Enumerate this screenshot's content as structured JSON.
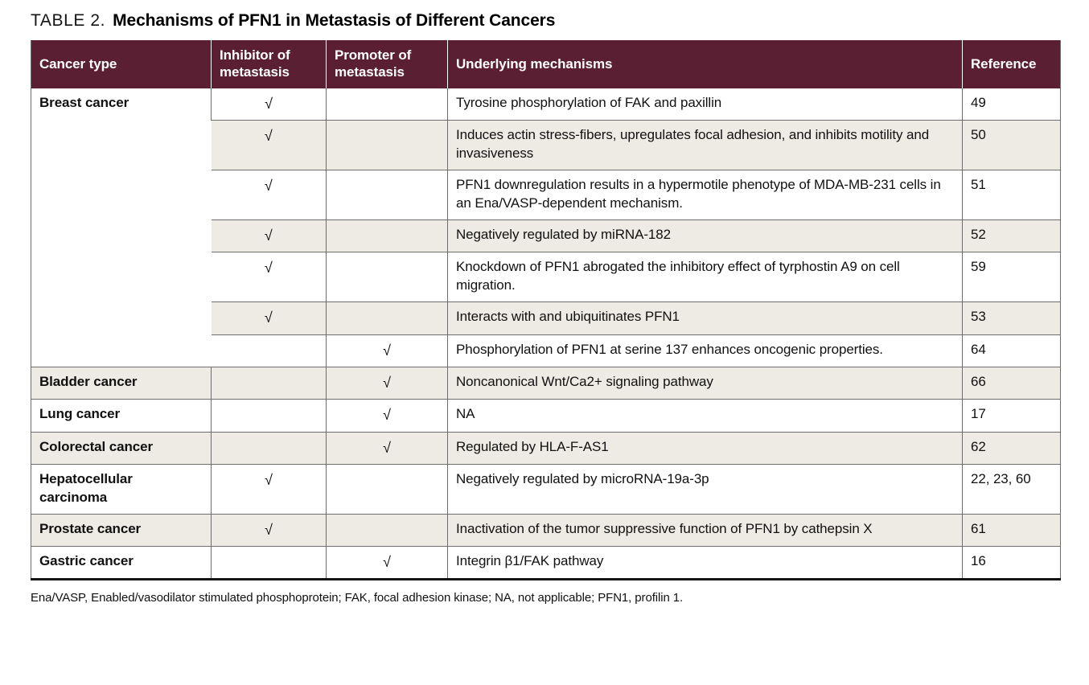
{
  "page": {
    "title_label": "TABLE 2.",
    "title_text": "Mechanisms of PFN1 in Metastasis of Different Cancers",
    "footnote": "Ena/VASP, Enabled/vasodilator stimulated phosphoprotein; FAK, focal adhesion kinase; NA, not applicable; PFN1, profilin 1."
  },
  "colors": {
    "header_bg": "#5b1f33",
    "row_shade": "#eeeae4",
    "grid_line": "#6e6e6e",
    "bottom_rule": "#141414",
    "header_text": "#ffffff"
  },
  "table": {
    "check_glyph": "√",
    "columns": [
      {
        "label": "Cancer type"
      },
      {
        "label": "Inhibitor of metastasis"
      },
      {
        "label": "Promoter of metastasis"
      },
      {
        "label": "Underlying mechanisms"
      },
      {
        "label": "Reference"
      }
    ],
    "rows": [
      {
        "cancer": "Breast cancer",
        "rowspan": 7,
        "inhibitor": true,
        "promoter": false,
        "mechanism": "Tyrosine phosphorylation of FAK and paxillin",
        "reference": "49",
        "shaded": false
      },
      {
        "cancer": null,
        "rowspan": 1,
        "inhibitor": true,
        "promoter": false,
        "mechanism": "Induces actin stress-fibers, upregulates focal adhesion, and inhibits motility and invasiveness",
        "reference": "50",
        "shaded": true
      },
      {
        "cancer": null,
        "rowspan": 1,
        "inhibitor": true,
        "promoter": false,
        "mechanism": "PFN1 downregulation results in a hypermotile phenotype of MDA-MB-231 cells in an Ena/VASP-dependent mechanism.",
        "reference": "51",
        "shaded": false
      },
      {
        "cancer": null,
        "rowspan": 1,
        "inhibitor": true,
        "promoter": false,
        "mechanism": "Negatively regulated by miRNA-182",
        "reference": "52",
        "shaded": true
      },
      {
        "cancer": null,
        "rowspan": 1,
        "inhibitor": true,
        "promoter": false,
        "mechanism": "Knockdown of PFN1 abrogated the inhibitory effect of tyrphostin A9 on cell migration.",
        "reference": "59",
        "shaded": false
      },
      {
        "cancer": null,
        "rowspan": 1,
        "inhibitor": true,
        "promoter": false,
        "mechanism": "Interacts with and ubiquitinates PFN1",
        "reference": "53",
        "shaded": true
      },
      {
        "cancer": null,
        "rowspan": 1,
        "inhibitor": false,
        "promoter": true,
        "mechanism": "Phosphorylation of PFN1 at serine 137 enhances oncogenic properties.",
        "reference": "64",
        "shaded": false
      },
      {
        "cancer": "Bladder cancer",
        "rowspan": 1,
        "inhibitor": false,
        "promoter": true,
        "mechanism": "Noncanonical Wnt/Ca2+ signaling pathway",
        "reference": "66",
        "shaded": true
      },
      {
        "cancer": "Lung cancer",
        "rowspan": 1,
        "inhibitor": false,
        "promoter": true,
        "mechanism": "NA",
        "reference": "17",
        "shaded": false
      },
      {
        "cancer": "Colorectal cancer",
        "rowspan": 1,
        "inhibitor": false,
        "promoter": true,
        "mechanism": "Regulated by HLA-F-AS1",
        "reference": "62",
        "shaded": true
      },
      {
        "cancer": "Hepatocellular carcinoma",
        "rowspan": 1,
        "inhibitor": true,
        "promoter": false,
        "mechanism": "Negatively regulated by microRNA-19a-3p",
        "reference": "22, 23, 60",
        "shaded": false
      },
      {
        "cancer": "Prostate cancer",
        "rowspan": 1,
        "inhibitor": true,
        "promoter": false,
        "mechanism": "Inactivation of the tumor suppressive function of PFN1 by cathepsin X",
        "reference": "61",
        "shaded": true
      },
      {
        "cancer": "Gastric cancer",
        "rowspan": 1,
        "inhibitor": false,
        "promoter": true,
        "mechanism": "Integrin β1/FAK pathway",
        "reference": "16",
        "shaded": false
      }
    ]
  }
}
